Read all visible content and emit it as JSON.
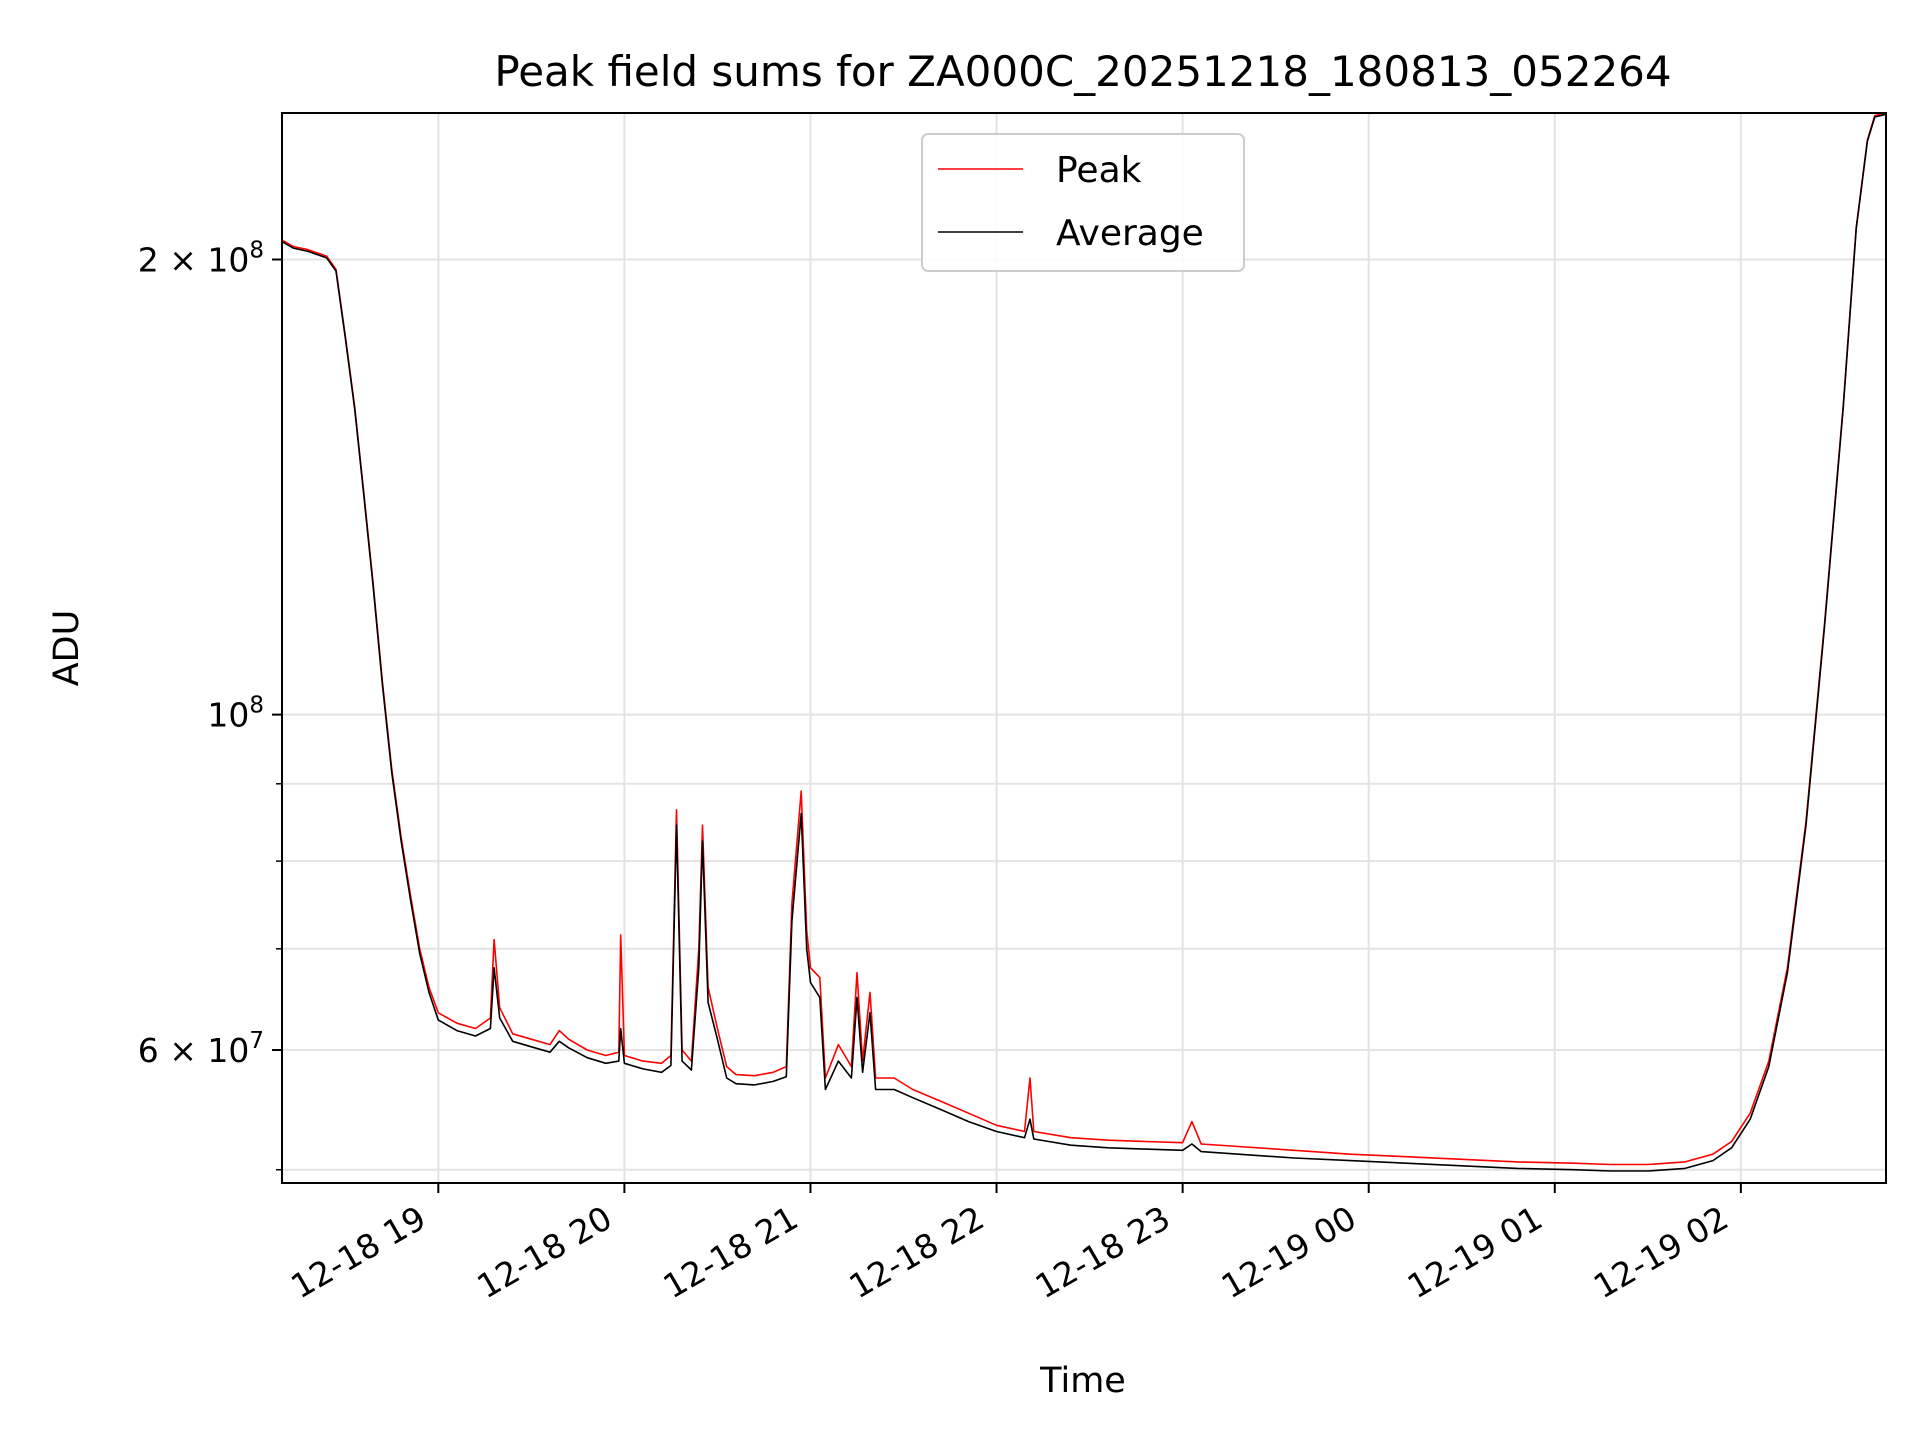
{
  "chart_data": {
    "type": "line",
    "title": "Peak field sums for ZA000C_20251218_180813_052264",
    "xlabel": "Time",
    "ylabel": "ADU",
    "yscale": "log",
    "ylim": [
      49000000,
      250000000
    ],
    "xlim_hours": [
      18.16,
      26.78
    ],
    "grid": true,
    "legend_position": "top-center",
    "x_ticks": [
      {
        "hour": 19,
        "label": "12-18 19"
      },
      {
        "hour": 20,
        "label": "12-18 20"
      },
      {
        "hour": 21,
        "label": "12-18 21"
      },
      {
        "hour": 22,
        "label": "12-18 22"
      },
      {
        "hour": 23,
        "label": "12-18 23"
      },
      {
        "hour": 24,
        "label": "12-19 00"
      },
      {
        "hour": 25,
        "label": "12-19 01"
      },
      {
        "hour": 26,
        "label": "12-19 02"
      }
    ],
    "y_major_ticks": [
      {
        "value": 60000000,
        "mantissa": "6 × 10",
        "exp": "7"
      },
      {
        "value": 100000000,
        "mantissa": "10",
        "exp": "8"
      },
      {
        "value": 200000000,
        "mantissa": "2 × 10",
        "exp": "8"
      }
    ],
    "y_minor_ticks": [
      50000000,
      70000000,
      80000000,
      90000000
    ],
    "series": [
      {
        "name": "Peak",
        "color": "#ff0000",
        "points": [
          [
            18.16,
            206000000
          ],
          [
            18.22,
            204000000
          ],
          [
            18.3,
            203000000
          ],
          [
            18.4,
            201000000
          ],
          [
            18.45,
            197000000
          ],
          [
            18.5,
            178000000
          ],
          [
            18.55,
            160000000
          ],
          [
            18.6,
            140000000
          ],
          [
            18.65,
            122000000
          ],
          [
            18.7,
            105000000
          ],
          [
            18.75,
            92000000
          ],
          [
            18.8,
            83000000
          ],
          [
            18.85,
            76000000
          ],
          [
            18.9,
            70000000
          ],
          [
            18.95,
            66000000
          ],
          [
            19.0,
            63500000
          ],
          [
            19.1,
            62500000
          ],
          [
            19.2,
            62000000
          ],
          [
            19.28,
            63000000
          ],
          [
            19.3,
            71000000
          ],
          [
            19.33,
            64000000
          ],
          [
            19.4,
            61500000
          ],
          [
            19.5,
            61000000
          ],
          [
            19.6,
            60500000
          ],
          [
            19.65,
            61800000
          ],
          [
            19.7,
            61000000
          ],
          [
            19.8,
            60000000
          ],
          [
            19.9,
            59500000
          ],
          [
            19.97,
            59800000
          ],
          [
            19.98,
            71500000
          ],
          [
            20.0,
            59500000
          ],
          [
            20.1,
            59000000
          ],
          [
            20.2,
            58800000
          ],
          [
            20.25,
            59500000
          ],
          [
            20.28,
            86500000
          ],
          [
            20.31,
            60000000
          ],
          [
            20.36,
            59000000
          ],
          [
            20.4,
            70000000
          ],
          [
            20.42,
            84500000
          ],
          [
            20.45,
            66000000
          ],
          [
            20.5,
            62000000
          ],
          [
            20.55,
            58500000
          ],
          [
            20.6,
            57800000
          ],
          [
            20.7,
            57700000
          ],
          [
            20.8,
            58000000
          ],
          [
            20.87,
            58500000
          ],
          [
            20.9,
            75000000
          ],
          [
            20.95,
            89000000
          ],
          [
            20.98,
            72000000
          ],
          [
            21.0,
            68000000
          ],
          [
            21.05,
            67000000
          ],
          [
            21.08,
            57500000
          ],
          [
            21.15,
            60500000
          ],
          [
            21.22,
            58500000
          ],
          [
            21.25,
            67500000
          ],
          [
            21.28,
            59000000
          ],
          [
            21.32,
            65500000
          ],
          [
            21.35,
            57500000
          ],
          [
            21.45,
            57500000
          ],
          [
            21.55,
            56500000
          ],
          [
            21.7,
            55500000
          ],
          [
            21.85,
            54500000
          ],
          [
            22.0,
            53500000
          ],
          [
            22.15,
            53000000
          ],
          [
            22.18,
            57500000
          ],
          [
            22.2,
            53000000
          ],
          [
            22.4,
            52500000
          ],
          [
            22.6,
            52300000
          ],
          [
            22.8,
            52200000
          ],
          [
            23.0,
            52100000
          ],
          [
            23.05,
            53800000
          ],
          [
            23.1,
            52000000
          ],
          [
            23.3,
            51800000
          ],
          [
            23.6,
            51500000
          ],
          [
            23.9,
            51200000
          ],
          [
            24.2,
            51000000
          ],
          [
            24.5,
            50800000
          ],
          [
            24.8,
            50600000
          ],
          [
            25.1,
            50500000
          ],
          [
            25.3,
            50400000
          ],
          [
            25.5,
            50400000
          ],
          [
            25.7,
            50600000
          ],
          [
            25.85,
            51200000
          ],
          [
            25.95,
            52200000
          ],
          [
            26.05,
            54500000
          ],
          [
            26.15,
            59000000
          ],
          [
            26.25,
            68000000
          ],
          [
            26.35,
            85000000
          ],
          [
            26.45,
            115000000
          ],
          [
            26.55,
            160000000
          ],
          [
            26.62,
            210000000
          ],
          [
            26.68,
            240000000
          ],
          [
            26.72,
            249000000
          ],
          [
            26.78,
            250000000
          ]
        ]
      },
      {
        "name": "Average",
        "color": "#000000",
        "points": [
          [
            18.16,
            205500000
          ],
          [
            18.22,
            203500000
          ],
          [
            18.3,
            202500000
          ],
          [
            18.4,
            200500000
          ],
          [
            18.45,
            196500000
          ],
          [
            18.5,
            177500000
          ],
          [
            18.55,
            159500000
          ],
          [
            18.6,
            139500000
          ],
          [
            18.65,
            121500000
          ],
          [
            18.7,
            104500000
          ],
          [
            18.75,
            91500000
          ],
          [
            18.8,
            82500000
          ],
          [
            18.85,
            75500000
          ],
          [
            18.9,
            69500000
          ],
          [
            18.95,
            65500000
          ],
          [
            19.0,
            62800000
          ],
          [
            19.1,
            61800000
          ],
          [
            19.2,
            61300000
          ],
          [
            19.28,
            62000000
          ],
          [
            19.3,
            68000000
          ],
          [
            19.33,
            63000000
          ],
          [
            19.4,
            60800000
          ],
          [
            19.5,
            60300000
          ],
          [
            19.6,
            59800000
          ],
          [
            19.65,
            60800000
          ],
          [
            19.7,
            60200000
          ],
          [
            19.8,
            59300000
          ],
          [
            19.9,
            58800000
          ],
          [
            19.97,
            59000000
          ],
          [
            19.98,
            62000000
          ],
          [
            20.0,
            58800000
          ],
          [
            20.1,
            58300000
          ],
          [
            20.2,
            58000000
          ],
          [
            20.25,
            58600000
          ],
          [
            20.28,
            84500000
          ],
          [
            20.31,
            59000000
          ],
          [
            20.36,
            58200000
          ],
          [
            20.4,
            68000000
          ],
          [
            20.42,
            82500000
          ],
          [
            20.45,
            64500000
          ],
          [
            20.5,
            61000000
          ],
          [
            20.55,
            57500000
          ],
          [
            20.6,
            57000000
          ],
          [
            20.7,
            56900000
          ],
          [
            20.8,
            57200000
          ],
          [
            20.87,
            57600000
          ],
          [
            20.9,
            73000000
          ],
          [
            20.95,
            86000000
          ],
          [
            20.98,
            70000000
          ],
          [
            21.0,
            66500000
          ],
          [
            21.05,
            65000000
          ],
          [
            21.08,
            56500000
          ],
          [
            21.15,
            59000000
          ],
          [
            21.22,
            57500000
          ],
          [
            21.25,
            65000000
          ],
          [
            21.28,
            58000000
          ],
          [
            21.32,
            63500000
          ],
          [
            21.35,
            56500000
          ],
          [
            21.45,
            56500000
          ],
          [
            21.55,
            55800000
          ],
          [
            21.7,
            54800000
          ],
          [
            21.85,
            53800000
          ],
          [
            22.0,
            53000000
          ],
          [
            22.15,
            52500000
          ],
          [
            22.18,
            54000000
          ],
          [
            22.2,
            52400000
          ],
          [
            22.4,
            51900000
          ],
          [
            22.6,
            51700000
          ],
          [
            22.8,
            51600000
          ],
          [
            23.0,
            51500000
          ],
          [
            23.05,
            52000000
          ],
          [
            23.1,
            51400000
          ],
          [
            23.3,
            51200000
          ],
          [
            23.6,
            50900000
          ],
          [
            23.9,
            50700000
          ],
          [
            24.2,
            50500000
          ],
          [
            24.5,
            50300000
          ],
          [
            24.8,
            50100000
          ],
          [
            25.1,
            50000000
          ],
          [
            25.3,
            49900000
          ],
          [
            25.5,
            49900000
          ],
          [
            25.7,
            50100000
          ],
          [
            25.85,
            50700000
          ],
          [
            25.95,
            51700000
          ],
          [
            26.05,
            54000000
          ],
          [
            26.15,
            58500000
          ],
          [
            26.25,
            67500000
          ],
          [
            26.35,
            84500000
          ],
          [
            26.45,
            114500000
          ],
          [
            26.55,
            159500000
          ],
          [
            26.62,
            209500000
          ],
          [
            26.68,
            239500000
          ],
          [
            26.72,
            248500000
          ],
          [
            26.78,
            249500000
          ]
        ]
      }
    ]
  }
}
